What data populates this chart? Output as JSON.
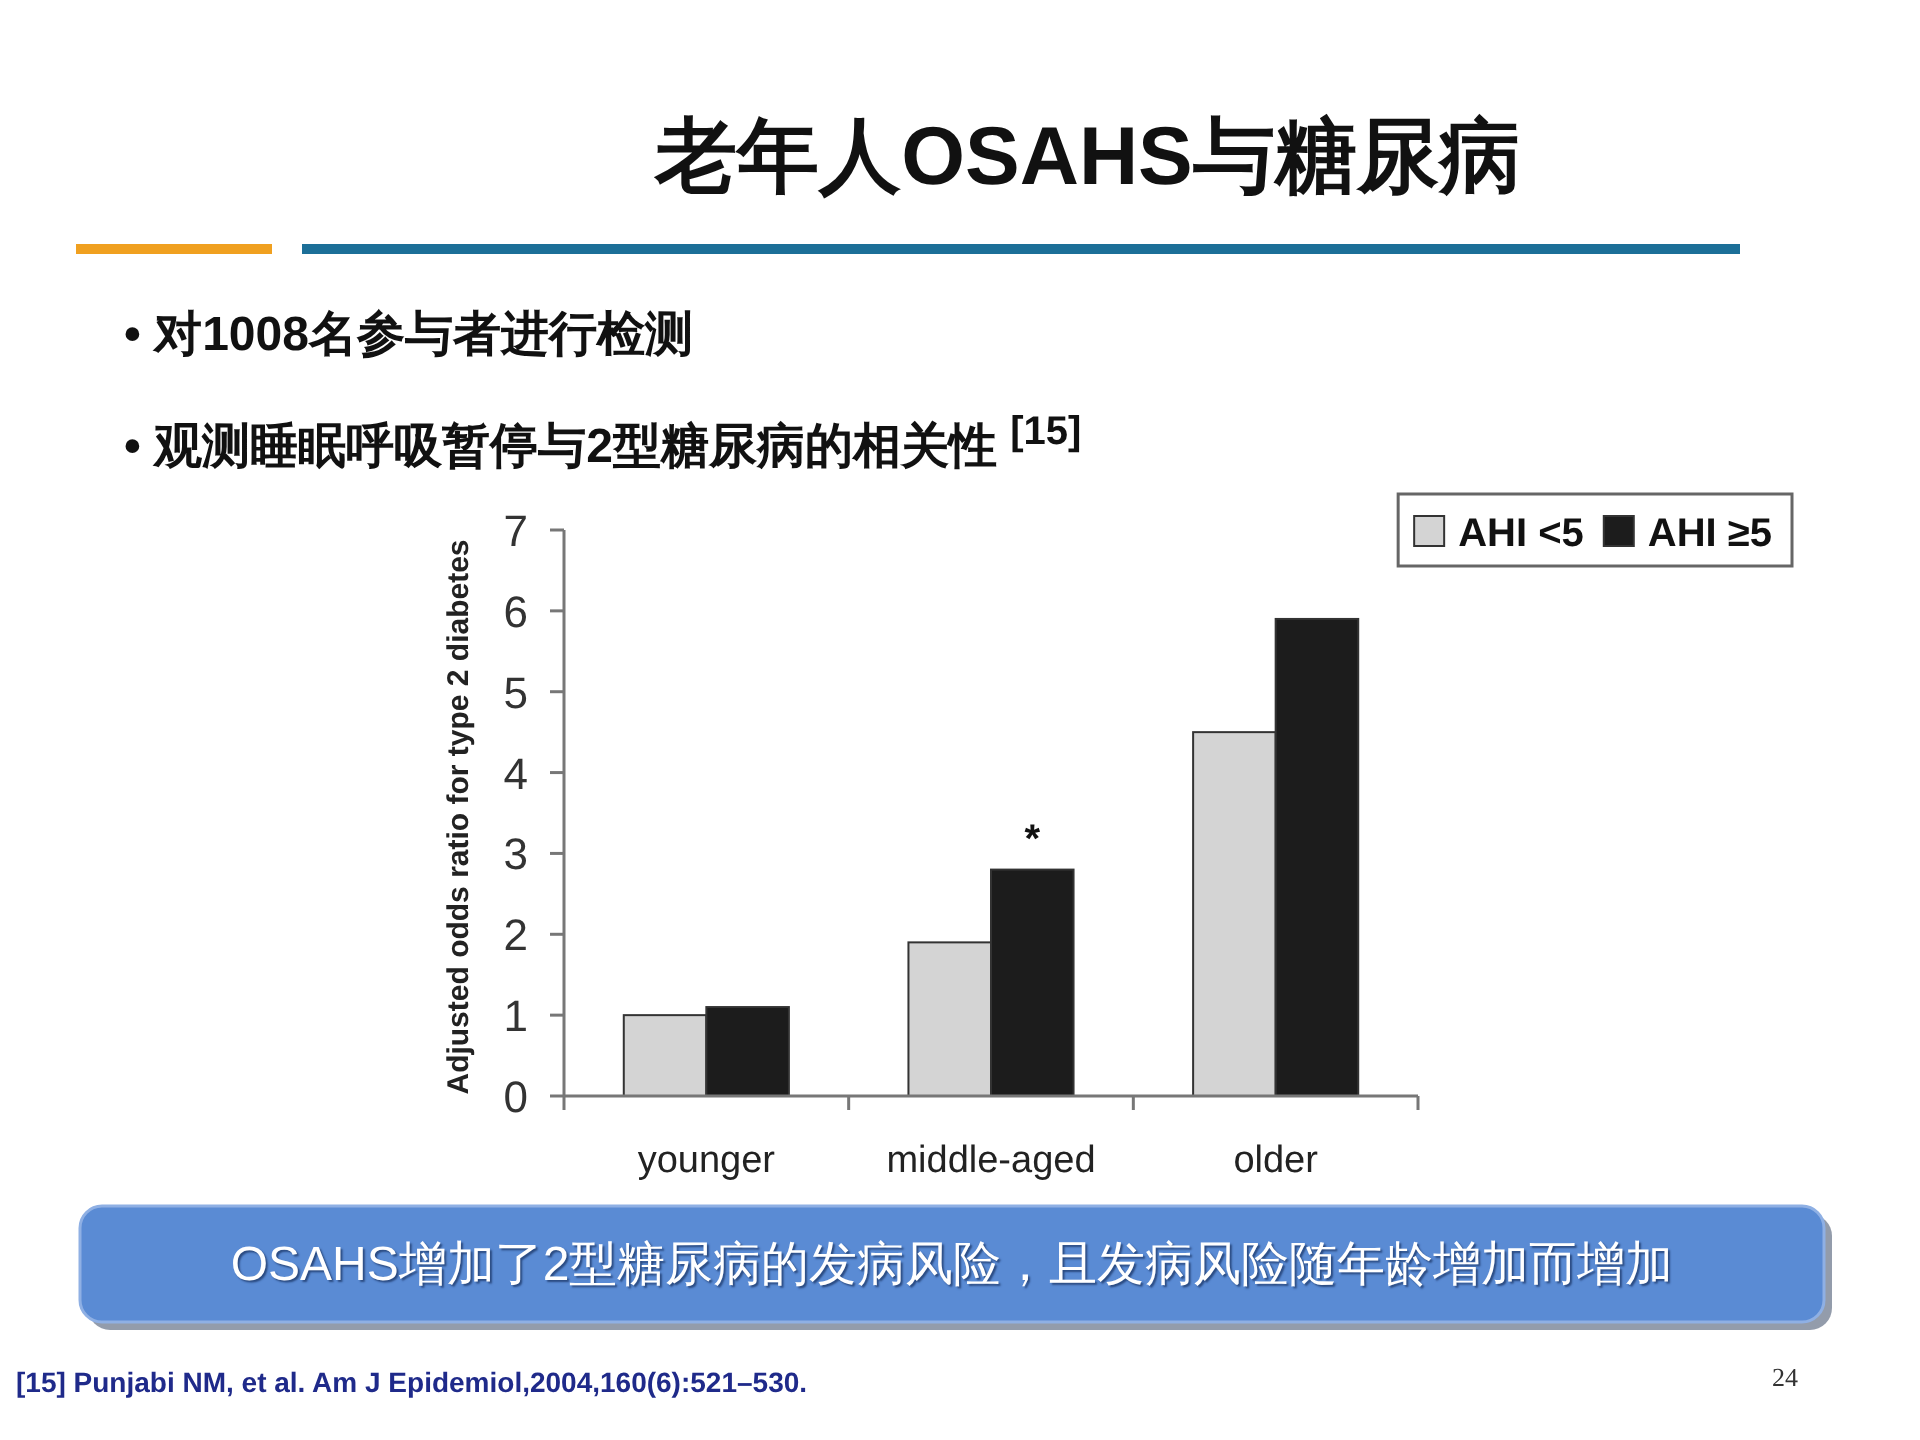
{
  "chart_data": {
    "type": "bar",
    "title": "老年人OSAHS与糖尿病",
    "ylabel": "Adjusted odds ratio for type 2 diabetes",
    "categories": [
      "younger",
      "middle-aged",
      "older"
    ],
    "series": [
      {
        "name": "AHI <5",
        "color": "#d4d4d4",
        "values": [
          1.0,
          1.9,
          4.5
        ]
      },
      {
        "name": "AHI ≥5",
        "color": "#1c1c1c",
        "values": [
          1.1,
          2.8,
          5.9
        ]
      }
    ],
    "ylim": [
      0,
      7
    ],
    "yticks": [
      0,
      1,
      2,
      3,
      4,
      5,
      6,
      7
    ],
    "legend": "top right",
    "annotations": [
      "• 对1008名参与者进行检测",
      "• 观测睡眠呼吸暂停与2型糖尿病的相关性 $^{[15]}$",
      "OSAHS增加了2型糖尿病的发病风险，且发病风险随年龄增加而增加",
      "[15] Punjabi NM, et al. Am J Epidemiol,2004,160(6):521–530.",
      "24",
      {
        "text": "*",
        "x": "middle-aged",
        "y": 2.8
      }
    ]
  }
}
